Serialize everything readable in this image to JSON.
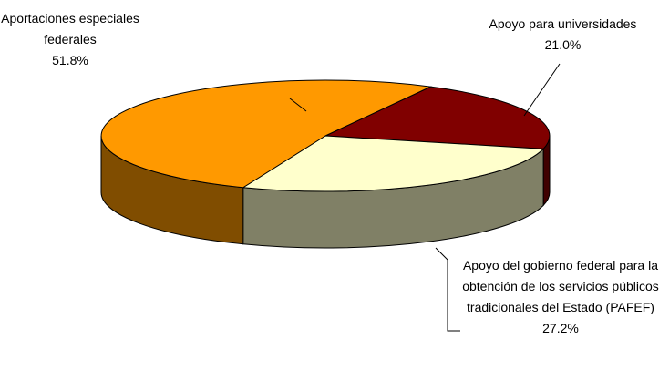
{
  "chart_data": {
    "type": "pie3d",
    "categories": [
      "Apoyo para universidades",
      "Apoyo del gobierno federal para la obtención de los servicios públicos tradicionales del Estado (PAFEF)",
      "Aportaciones especiales federales"
    ],
    "values": [
      21.0,
      27.2,
      51.8
    ],
    "value_labels": [
      "21.0%",
      "27.2%",
      "51.8%"
    ],
    "colors": [
      "#800000",
      "#ffffcc",
      "#ff9900"
    ]
  }
}
